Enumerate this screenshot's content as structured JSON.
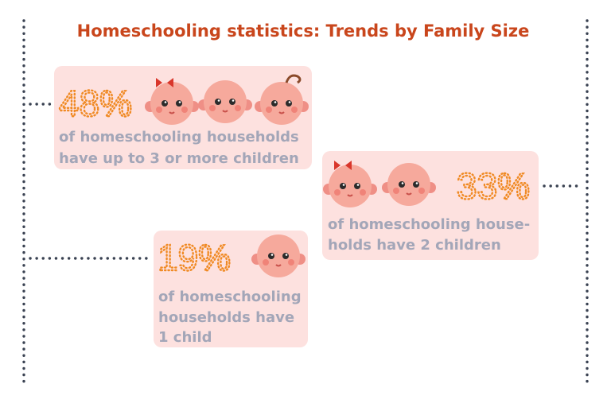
{
  "title": "Homeschooling statistics: Trends by Family Size",
  "cards": [
    {
      "percent": "48%",
      "lines": [
        "of homeschooling households",
        "have up to 3 or more children"
      ]
    },
    {
      "percent": "33%",
      "lines": [
        "of homeschooling house-",
        "holds have 2 children"
      ]
    },
    {
      "percent": "19%",
      "lines": [
        "of homeschooling",
        "households have",
        "1 child"
      ]
    }
  ]
}
